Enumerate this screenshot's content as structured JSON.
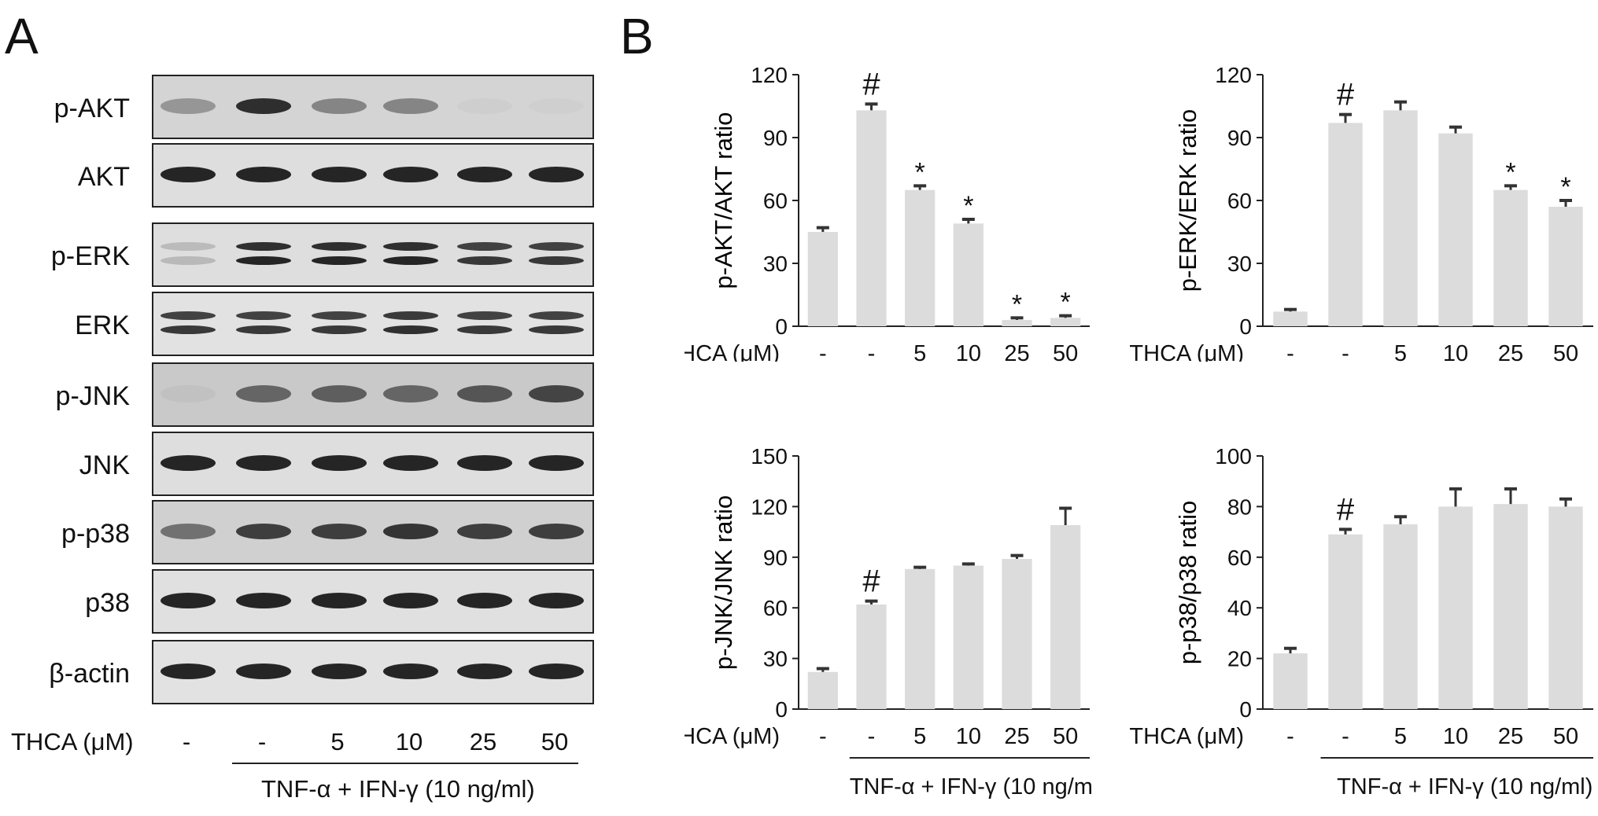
{
  "panel_a": {
    "letter": "A",
    "thca_label": "THCA (μM)",
    "treatment_label": "TNF-α + IFN-γ (10 ng/ml)",
    "lanes": [
      "-",
      "-",
      "5",
      "10",
      "25",
      "50"
    ],
    "rows": [
      {
        "label": "p-AKT",
        "intensity": [
          0.35,
          0.95,
          0.45,
          0.45,
          0.03,
          0.02
        ]
      },
      {
        "label": "AKT",
        "intensity": [
          1,
          1,
          1,
          1,
          1,
          1
        ]
      },
      {
        "label": "p-ERK",
        "intensity": [
          0.2,
          1,
          1,
          1,
          0.9,
          0.9
        ]
      },
      {
        "label": "ERK",
        "intensity": [
          0.9,
          0.9,
          0.9,
          0.95,
          0.9,
          0.9
        ]
      },
      {
        "label": "p-JNK",
        "intensity": [
          0.05,
          0.6,
          0.65,
          0.6,
          0.7,
          0.8
        ]
      },
      {
        "label": "JNK",
        "intensity": [
          1,
          1,
          1,
          1,
          1,
          1
        ]
      },
      {
        "label": "p-p38",
        "intensity": [
          0.55,
          0.85,
          0.85,
          0.9,
          0.85,
          0.85
        ]
      },
      {
        "label": "p38",
        "intensity": [
          1,
          1,
          1,
          1,
          1,
          1
        ]
      },
      {
        "label": "β-actin",
        "intensity": [
          1,
          1,
          1,
          1,
          1,
          1
        ]
      }
    ]
  },
  "panel_b": {
    "letter": "B",
    "thca_label": "THCA (μM)",
    "treatment_label": "TNF-α + IFN-γ (10 ng/ml)"
  },
  "chart_data": [
    {
      "type": "bar",
      "ylabel": "p-AKT/AKT ratio",
      "categories": [
        "-",
        "-",
        "5",
        "10",
        "25",
        "50"
      ],
      "values": [
        45,
        103,
        65,
        49,
        3,
        4
      ],
      "errors": [
        2,
        3,
        2,
        2,
        1,
        1
      ],
      "annotations": [
        "",
        "#",
        "*",
        "*",
        "*",
        "*"
      ],
      "ylim": [
        0,
        120
      ],
      "yticks": [
        0,
        30,
        60,
        90,
        120
      ],
      "color": "#dcdcdc"
    },
    {
      "type": "bar",
      "ylabel": "p-ERK/ERK ratio",
      "categories": [
        "-",
        "-",
        "5",
        "10",
        "25",
        "50"
      ],
      "values": [
        7,
        97,
        103,
        92,
        65,
        57
      ],
      "errors": [
        1,
        4,
        4,
        3,
        2,
        3
      ],
      "annotations": [
        "",
        "#",
        "",
        "",
        "*",
        "*"
      ],
      "ylim": [
        0,
        120
      ],
      "yticks": [
        0,
        30,
        60,
        90,
        120
      ],
      "color": "#dcdcdc"
    },
    {
      "type": "bar",
      "ylabel": "p-JNK/JNK ratio",
      "categories": [
        "-",
        "-",
        "5",
        "10",
        "25",
        "50"
      ],
      "values": [
        22,
        62,
        83,
        85,
        89,
        109
      ],
      "errors": [
        2,
        2,
        1,
        1,
        2,
        10
      ],
      "annotations": [
        "",
        "#",
        "",
        "",
        "",
        ""
      ],
      "ylim": [
        0,
        150
      ],
      "yticks": [
        0,
        30,
        60,
        90,
        120,
        150
      ],
      "color": "#dcdcdc"
    },
    {
      "type": "bar",
      "ylabel": "p-p38/p38 ratio",
      "categories": [
        "-",
        "-",
        "5",
        "10",
        "25",
        "50"
      ],
      "values": [
        22,
        69,
        73,
        80,
        81,
        80
      ],
      "errors": [
        2,
        2,
        3,
        7,
        6,
        3
      ],
      "annotations": [
        "",
        "#",
        "",
        "",
        "",
        ""
      ],
      "ylim": [
        0,
        100
      ],
      "yticks": [
        0,
        20,
        40,
        60,
        80,
        100
      ],
      "color": "#dcdcdc"
    }
  ]
}
